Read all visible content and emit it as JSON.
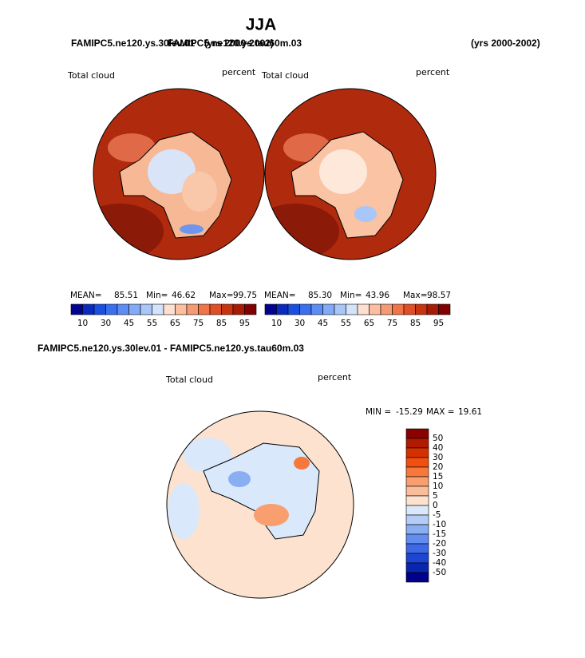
{
  "title": "JJA",
  "panels": [
    {
      "case": "FAMIPC5.ne120.ys.30lev.01",
      "years": "(yrs 2000-2002)",
      "field": "Total cloud",
      "units": "percent",
      "stats": [
        "MEAN=",
        "85.51",
        "Min=",
        "46.62",
        "Max=",
        "99.75"
      ]
    },
    {
      "case": "FAMIPC5.ne120.ys.tau60m.03",
      "years": "(yrs 2000-2002)",
      "field": "Total cloud",
      "units": "percent",
      "stats": [
        "MEAN=",
        "85.30",
        "Min=",
        "43.96",
        "Max=",
        "98.57"
      ]
    }
  ],
  "colorbar": {
    "labels": [
      10,
      30,
      45,
      55,
      65,
      75,
      85,
      95
    ],
    "colors": [
      "#030392",
      "#0a2bc0",
      "#1b4fe0",
      "#3a6ff0",
      "#5c8df5",
      "#82aaf7",
      "#a9c6f9",
      "#d4e3fb",
      "#fde0d0",
      "#fbbf9f",
      "#f69a74",
      "#f07448",
      "#e04f25",
      "#c9330f",
      "#a81b05",
      "#820000"
    ]
  },
  "difference": {
    "title": "FAMIPC5.ne120.ys.30lev.01 - FAMIPC5.ne120.ys.tau60m.03",
    "field": "Total cloud",
    "units": "percent",
    "stats": [
      "MIN =",
      "-15.29",
      "MAX =",
      "19.61"
    ],
    "colorbar": {
      "labels": [
        50,
        40,
        30,
        20,
        15,
        10,
        5,
        0,
        -5,
        -10,
        -15,
        -20,
        -30,
        -40,
        -50
      ],
      "colors": [
        "#8b0000",
        "#b01a00",
        "#d63000",
        "#f04f10",
        "#f7783c",
        "#f99e6e",
        "#fbbd99",
        "#fde3cf",
        "#d9e8fa",
        "#b3cdf6",
        "#8aaef2",
        "#628ced",
        "#3d68e6",
        "#1d45d3",
        "#0a25b0",
        "#00008b"
      ]
    }
  }
}
